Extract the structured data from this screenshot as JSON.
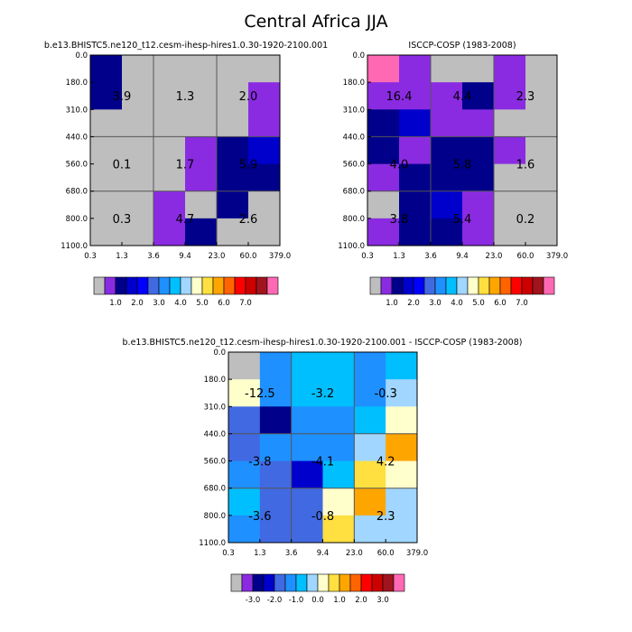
{
  "title": "Central Africa JJA",
  "chart_data": [
    {
      "type": "heatmap",
      "title": "b.e13.BHISTC5.ne120_t12.cesm-ihesp-hires1.0.30-1920-2100.001",
      "x_ticks": [
        "0.3",
        "1.3",
        "3.6",
        "9.4",
        "23.0",
        "60.0",
        "379.0"
      ],
      "y_ticks": [
        "0.0",
        "180.0",
        "310.0",
        "440.0",
        "560.0",
        "680.0",
        "800.0",
        "1100.0"
      ],
      "cells": [
        [
          1.9,
          0.0,
          0.0,
          0.0,
          0.0,
          0.0
        ],
        [
          1.9,
          0.0,
          0.0,
          0.0,
          0.0,
          1.1
        ],
        [
          0.0,
          0.0,
          0.0,
          0.0,
          0.0,
          1.1
        ],
        [
          0.0,
          0.0,
          0.0,
          1.1,
          1.9,
          2.9
        ],
        [
          0.0,
          0.0,
          0.0,
          1.1,
          2.3,
          1.9
        ],
        [
          0.0,
          0.0,
          1.1,
          0.0,
          2.3,
          0.0
        ],
        [
          0.0,
          0.0,
          1.1,
          2.3,
          0.0,
          0.0
        ]
      ],
      "labels": [
        {
          "text": "3.9",
          "col": 1,
          "row": 1.5
        },
        {
          "text": "1.3",
          "col": 3,
          "row": 1.5
        },
        {
          "text": "2.0",
          "col": 5,
          "row": 1.5
        },
        {
          "text": "0.1",
          "col": 1,
          "row": 4
        },
        {
          "text": "1.7",
          "col": 3,
          "row": 4
        },
        {
          "text": "5.9",
          "col": 5,
          "row": 4
        },
        {
          "text": "0.3",
          "col": 1,
          "row": 6
        },
        {
          "text": "4.7",
          "col": 3,
          "row": 6
        },
        {
          "text": "2.6",
          "col": 5,
          "row": 6
        }
      ],
      "colorbar": {
        "colors": [
          "#bebebe",
          "#8a2be2",
          "#00008b",
          "#0000cd",
          "#0000ff",
          "#4169e1",
          "#1e90ff",
          "#00bfff",
          "#a0d6ff",
          "#ffffcc",
          "#ffe040",
          "#ffa500",
          "#ff6400",
          "#ff0000",
          "#cd0000",
          "#a0141e",
          "#ff69b4"
        ],
        "labels": [
          "1.0",
          "2.0",
          "3.0",
          "4.0",
          "5.0",
          "6.0",
          "7.0"
        ]
      }
    },
    {
      "type": "heatmap",
      "title": "ISCCP-COSP (1983-2008)",
      "x_ticks": [
        "0.3",
        "1.3",
        "3.6",
        "9.4",
        "23.0",
        "60.0",
        "379.0"
      ],
      "y_ticks": [
        "0.0",
        "180.0",
        "310.0",
        "440.0",
        "560.0",
        "680.0",
        "800.0",
        "1100.0"
      ],
      "cells": [
        [
          7.2,
          1.1,
          0.0,
          0.0,
          1.1,
          0.0
        ],
        [
          1.1,
          1.1,
          1.1,
          1.9,
          1.1,
          0.0
        ],
        [
          1.9,
          3.0,
          1.1,
          1.1,
          0.0,
          0.0
        ],
        [
          1.9,
          1.1,
          1.9,
          1.9,
          1.1,
          0.0
        ],
        [
          1.1,
          1.9,
          2.3,
          1.9,
          0.0,
          0.0
        ],
        [
          0.0,
          1.9,
          2.9,
          1.1,
          0.0,
          0.0
        ],
        [
          1.1,
          2.3,
          2.3,
          1.1,
          0.0,
          0.0
        ]
      ],
      "labels": [
        {
          "text": "16.4",
          "col": 1,
          "row": 1.5
        },
        {
          "text": "4.4",
          "col": 3,
          "row": 1.5
        },
        {
          "text": "2.3",
          "col": 5,
          "row": 1.5
        },
        {
          "text": "4.0",
          "col": 1,
          "row": 4
        },
        {
          "text": "5.8",
          "col": 3,
          "row": 4
        },
        {
          "text": "1.6",
          "col": 5,
          "row": 4
        },
        {
          "text": "3.8",
          "col": 1,
          "row": 6
        },
        {
          "text": "5.4",
          "col": 3,
          "row": 6
        },
        {
          "text": "0.2",
          "col": 5,
          "row": 6
        }
      ],
      "colorbar": {
        "colors": [
          "#bebebe",
          "#8a2be2",
          "#00008b",
          "#0000cd",
          "#0000ff",
          "#4169e1",
          "#1e90ff",
          "#00bfff",
          "#a0d6ff",
          "#ffffcc",
          "#ffe040",
          "#ffa500",
          "#ff6400",
          "#ff0000",
          "#cd0000",
          "#a0141e",
          "#ff69b4"
        ],
        "labels": [
          "1.0",
          "2.0",
          "3.0",
          "4.0",
          "5.0",
          "6.0",
          "7.0"
        ]
      }
    },
    {
      "type": "heatmap",
      "title": "b.e13.BHISTC5.ne120_t12.cesm-ihesp-hires1.0.30-1920-2100.001 - ISCCP-COSP (1983-2008)",
      "x_ticks": [
        "0.3",
        "1.3",
        "3.6",
        "9.4",
        "23.0",
        "60.0",
        "379.0"
      ],
      "y_ticks": [
        "0.0",
        "180.0",
        "310.0",
        "440.0",
        "560.0",
        "680.0",
        "800.0",
        "1100.0"
      ],
      "cells": [
        [
          -4.0,
          -0.9,
          -0.2,
          -0.2,
          -0.9,
          -0.2
        ],
        [
          1.0,
          -0.9,
          -0.2,
          -0.2,
          -0.9,
          0.2
        ],
        [
          -1.2,
          -3.5,
          -0.9,
          -0.9,
          -0.2,
          1.0
        ],
        [
          -1.2,
          -0.9,
          -0.9,
          -0.9,
          0.2,
          2.2
        ],
        [
          -0.9,
          -1.2,
          -1.8,
          -0.2,
          1.6,
          1.0
        ],
        [
          -0.2,
          -1.2,
          -1.2,
          1.0,
          2.2,
          0.2
        ],
        [
          -0.9,
          -1.2,
          -1.2,
          1.6,
          0.2,
          0.2
        ]
      ],
      "labels": [
        {
          "text": "-12.5",
          "col": 1,
          "row": 1.5
        },
        {
          "text": "-3.2",
          "col": 3,
          "row": 1.5
        },
        {
          "text": "-0.3",
          "col": 5,
          "row": 1.5
        },
        {
          "text": "-3.8",
          "col": 1,
          "row": 4
        },
        {
          "text": "-4.1",
          "col": 3,
          "row": 4
        },
        {
          "text": "4.2",
          "col": 5,
          "row": 4
        },
        {
          "text": "-3.6",
          "col": 1,
          "row": 6
        },
        {
          "text": "-0.8",
          "col": 3,
          "row": 6
        },
        {
          "text": "2.3",
          "col": 5,
          "row": 6
        }
      ],
      "colorbar": {
        "colors": [
          "#bebebe",
          "#8a2be2",
          "#00008b",
          "#0000cd",
          "#4169e1",
          "#1e90ff",
          "#00bfff",
          "#a0d6ff",
          "#ffffcc",
          "#ffe040",
          "#ffa500",
          "#ff6400",
          "#ff0000",
          "#cd0000",
          "#a0141e",
          "#ff69b4"
        ],
        "labels": [
          "-3.0",
          "-2.0",
          "-1.0",
          "0.0",
          "1.0",
          "2.0",
          "3.0"
        ]
      }
    }
  ]
}
